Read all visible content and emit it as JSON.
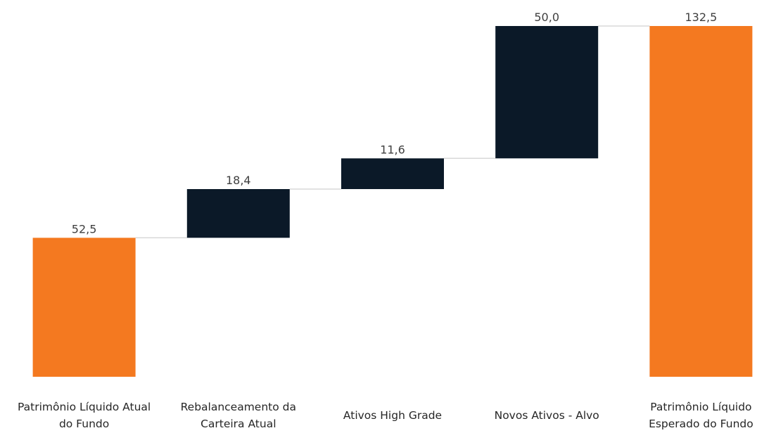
{
  "chart_data": {
    "type": "bar",
    "subtype": "waterfall",
    "categories": [
      [
        "Patrimônio Líquido Atual",
        "do Fundo"
      ],
      [
        "Rebalanceamento da",
        "Carteira Atual"
      ],
      [
        "Ativos High Grade"
      ],
      [
        "Novos Ativos - Alvo"
      ],
      [
        "Patrimônio Líquido",
        "Esperado do Fundo"
      ]
    ],
    "values": [
      52.5,
      18.4,
      11.6,
      50.0,
      132.5
    ],
    "value_labels": [
      "52,5",
      "18,4",
      "11,6",
      "50,0",
      "132,5"
    ],
    "bar_kinds": [
      "total",
      "increase",
      "increase",
      "increase",
      "total"
    ],
    "colors": {
      "total": "#F47920",
      "increase": "#0B1928",
      "connector": "#D9D9D9"
    },
    "title": "",
    "xlabel": "",
    "ylabel": "",
    "ylim": [
      0,
      132.5
    ],
    "grid": false,
    "legend": "none"
  }
}
